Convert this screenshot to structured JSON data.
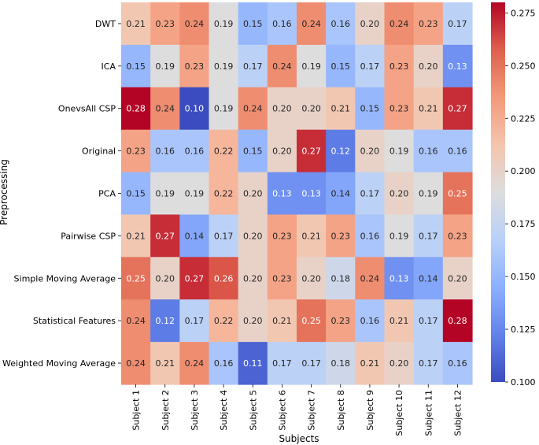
{
  "chart_data": {
    "type": "heatmap",
    "xlabel": "Subjects",
    "ylabel": "Preprocessing",
    "x_categories": [
      "Subject 1",
      "Subject 2",
      "Subject 3",
      "Subject 4",
      "Subject 5",
      "Subject 6",
      "Subject 7",
      "Subject 8",
      "Subject 9",
      "Subject 10",
      "Subject 11",
      "Subject 12"
    ],
    "y_categories": [
      "DWT",
      "ICA",
      "OnevsAll CSP",
      "Original",
      "PCA",
      "Pairwise CSP",
      "Simple Moving Average",
      "Statistical Features",
      "Weighted Moving Average"
    ],
    "values": [
      [
        0.21,
        0.23,
        0.24,
        0.19,
        0.15,
        0.16,
        0.24,
        0.16,
        0.2,
        0.24,
        0.23,
        0.17
      ],
      [
        0.15,
        0.19,
        0.23,
        0.19,
        0.17,
        0.24,
        0.19,
        0.15,
        0.17,
        0.23,
        0.2,
        0.13
      ],
      [
        0.28,
        0.24,
        0.1,
        0.19,
        0.24,
        0.2,
        0.2,
        0.21,
        0.15,
        0.23,
        0.21,
        0.27
      ],
      [
        0.23,
        0.16,
        0.16,
        0.22,
        0.15,
        0.2,
        0.27,
        0.12,
        0.2,
        0.19,
        0.16,
        0.16
      ],
      [
        0.15,
        0.19,
        0.19,
        0.22,
        0.2,
        0.13,
        0.13,
        0.14,
        0.17,
        0.2,
        0.19,
        0.25
      ],
      [
        0.21,
        0.27,
        0.14,
        0.17,
        0.2,
        0.23,
        0.21,
        0.23,
        0.16,
        0.19,
        0.17,
        0.23
      ],
      [
        0.25,
        0.2,
        0.27,
        0.26,
        0.2,
        0.23,
        0.2,
        0.18,
        0.24,
        0.13,
        0.14,
        0.2
      ],
      [
        0.24,
        0.12,
        0.17,
        0.22,
        0.2,
        0.21,
        0.25,
        0.23,
        0.16,
        0.21,
        0.17,
        0.28
      ],
      [
        0.24,
        0.21,
        0.24,
        0.16,
        0.11,
        0.17,
        0.17,
        0.18,
        0.21,
        0.2,
        0.17,
        0.16
      ]
    ],
    "colorbar": {
      "vmin": 0.1,
      "vmax": 0.28,
      "ticks": [
        "0.100",
        "0.125",
        "0.150",
        "0.175",
        "0.200",
        "0.225",
        "0.250",
        "0.275"
      ],
      "colormap": "coolwarm"
    }
  }
}
